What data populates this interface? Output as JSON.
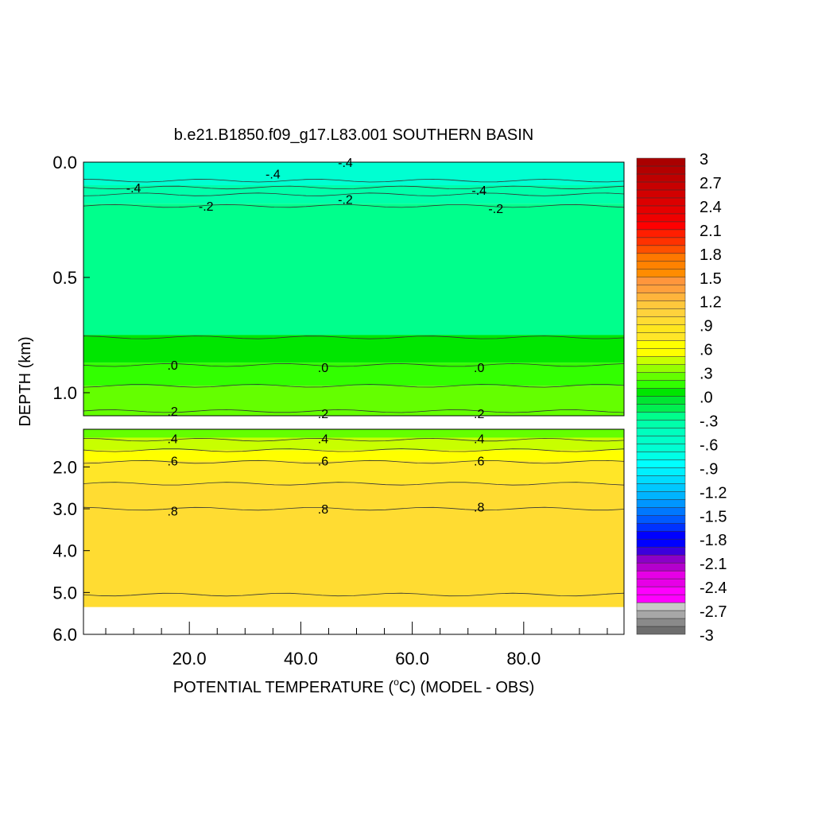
{
  "chart_data": {
    "type": "heatmap",
    "title": "b.e21.B1850.f09_g17.L83.001 SOUTHERN BASIN",
    "xlabel": "POTENTIAL TEMPERATURE (°C) (MODEL - OBS)",
    "xlabel_pre": "POTENTIAL TEMPERATURE (",
    "xlabel_sup": "o",
    "xlabel_post": "C) (MODEL - OBS)",
    "ylabel": "DEPTH (km)",
    "xlim": [
      1,
      98
    ],
    "x_ticks": [
      "20.0",
      "40.0",
      "60.0",
      "80.0"
    ],
    "x_tick_values": [
      20,
      40,
      60,
      80
    ],
    "panels": [
      {
        "name": "upper",
        "ylim": [
          0.0,
          1.1
        ],
        "y_ticks": [
          "0.0",
          "0.5",
          "1.0"
        ],
        "y_tick_values": [
          0.0,
          0.5,
          1.0
        ],
        "bands": [
          {
            "from": 0.0,
            "to": 0.1,
            "value": -0.6
          },
          {
            "from": 0.1,
            "to": 0.18,
            "value": -0.4
          },
          {
            "from": 0.18,
            "to": 0.75,
            "value": -0.2
          },
          {
            "from": 0.75,
            "to": 0.87,
            "value": 0.0
          },
          {
            "from": 0.87,
            "to": 0.97,
            "value": 0.1
          },
          {
            "from": 0.97,
            "to": 1.1,
            "value": 0.2
          }
        ],
        "contour_depths": [
          0.08,
          0.11,
          0.14,
          0.19,
          0.76,
          0.88,
          0.97,
          1.08
        ],
        "contour_labels": [
          {
            "text": "-.4",
            "x": 48,
            "depth": 0.0
          },
          {
            "text": "-.4",
            "x": 35,
            "depth": 0.05
          },
          {
            "text": "-.4",
            "x": 10,
            "depth": 0.11
          },
          {
            "text": "-.4",
            "x": 72,
            "depth": 0.12
          },
          {
            "text": "-.2",
            "x": 23,
            "depth": 0.19
          },
          {
            "text": "-.2",
            "x": 48,
            "depth": 0.16
          },
          {
            "text": "-.2",
            "x": 75,
            "depth": 0.2
          },
          {
            "text": ".0",
            "x": 17,
            "depth": 0.88
          },
          {
            "text": ".0",
            "x": 44,
            "depth": 0.89
          },
          {
            "text": ".0",
            "x": 72,
            "depth": 0.89
          },
          {
            "text": ".2",
            "x": 17,
            "depth": 1.08
          },
          {
            "text": ".2",
            "x": 44,
            "depth": 1.09
          },
          {
            "text": ".2",
            "x": 72,
            "depth": 1.09
          }
        ]
      },
      {
        "name": "lower",
        "ylim": [
          1.1,
          6.0
        ],
        "y_ticks": [
          "2.0",
          "3.0",
          "4.0",
          "5.0",
          "6.0"
        ],
        "y_tick_values": [
          2.0,
          3.0,
          4.0,
          5.0,
          6.0
        ],
        "data_bottom": 5.35,
        "bands": [
          {
            "from": 1.1,
            "to": 1.3,
            "value": 0.3
          },
          {
            "from": 1.3,
            "to": 1.6,
            "value": 0.4
          },
          {
            "from": 1.6,
            "to": 1.85,
            "value": 0.5
          },
          {
            "from": 1.85,
            "to": 2.4,
            "value": 0.7
          },
          {
            "from": 2.4,
            "to": 5.35,
            "value": 0.9
          }
        ],
        "contour_depths": [
          1.35,
          1.6,
          1.88,
          2.4,
          3.0,
          5.05
        ],
        "contour_labels": [
          {
            "text": ".4",
            "x": 17,
            "depth": 1.32
          },
          {
            "text": ".4",
            "x": 44,
            "depth": 1.32
          },
          {
            "text": ".4",
            "x": 72,
            "depth": 1.32
          },
          {
            "text": ".6",
            "x": 17,
            "depth": 1.85
          },
          {
            "text": ".6",
            "x": 44,
            "depth": 1.85
          },
          {
            "text": ".6",
            "x": 72,
            "depth": 1.85
          },
          {
            "text": ".8",
            "x": 17,
            "depth": 3.05
          },
          {
            "text": ".8",
            "x": 44,
            "depth": 3.0
          },
          {
            "text": ".8",
            "x": 72,
            "depth": 2.95
          }
        ]
      }
    ],
    "colorbar": {
      "labels": [
        "3",
        "2.7",
        "2.4",
        "2.1",
        "1.8",
        "1.5",
        "1.2",
        ".9",
        ".6",
        ".3",
        ".0",
        "-.3",
        "-.6",
        "-.9",
        "-1.2",
        "-1.5",
        "-1.8",
        "-2.1",
        "-2.4",
        "-2.7",
        "-3"
      ],
      "min": -3,
      "max": 3,
      "colors": [
        "#6e6e6e",
        "#8a8a8a",
        "#a7a7a7",
        "#c8c8c8",
        "#ff00ff",
        "#ff00ff",
        "#e600e6",
        "#e600e6",
        "#b400cd",
        "#8c00c8",
        "#3c00dc",
        "#0000ff",
        "#0000ff",
        "#0032ff",
        "#005aff",
        "#0078ff",
        "#0096ff",
        "#00b4ff",
        "#00c8ff",
        "#00dcff",
        "#00f0ff",
        "#00ffff",
        "#00ffe6",
        "#00ffd2",
        "#00ffc8",
        "#00ffbe",
        "#00ffaa",
        "#00ff8c",
        "#00f050",
        "#00e632",
        "#00e600",
        "#32ff00",
        "#64ff00",
        "#96ff00",
        "#c8ff00",
        "#ffff00",
        "#ffff00",
        "#ffe628",
        "#ffe61e",
        "#ffdc32",
        "#ffd23c",
        "#ffc83c",
        "#ffb43c",
        "#ffa03c",
        "#ff963c",
        "#ff8c00",
        "#ff8200",
        "#ff7800",
        "#ff5000",
        "#ff3200",
        "#ff1e00",
        "#ff0000",
        "#f00000",
        "#e60000",
        "#dc0000",
        "#d20000",
        "#c80000",
        "#be0000",
        "#b40000",
        "#aa0000"
      ]
    }
  }
}
